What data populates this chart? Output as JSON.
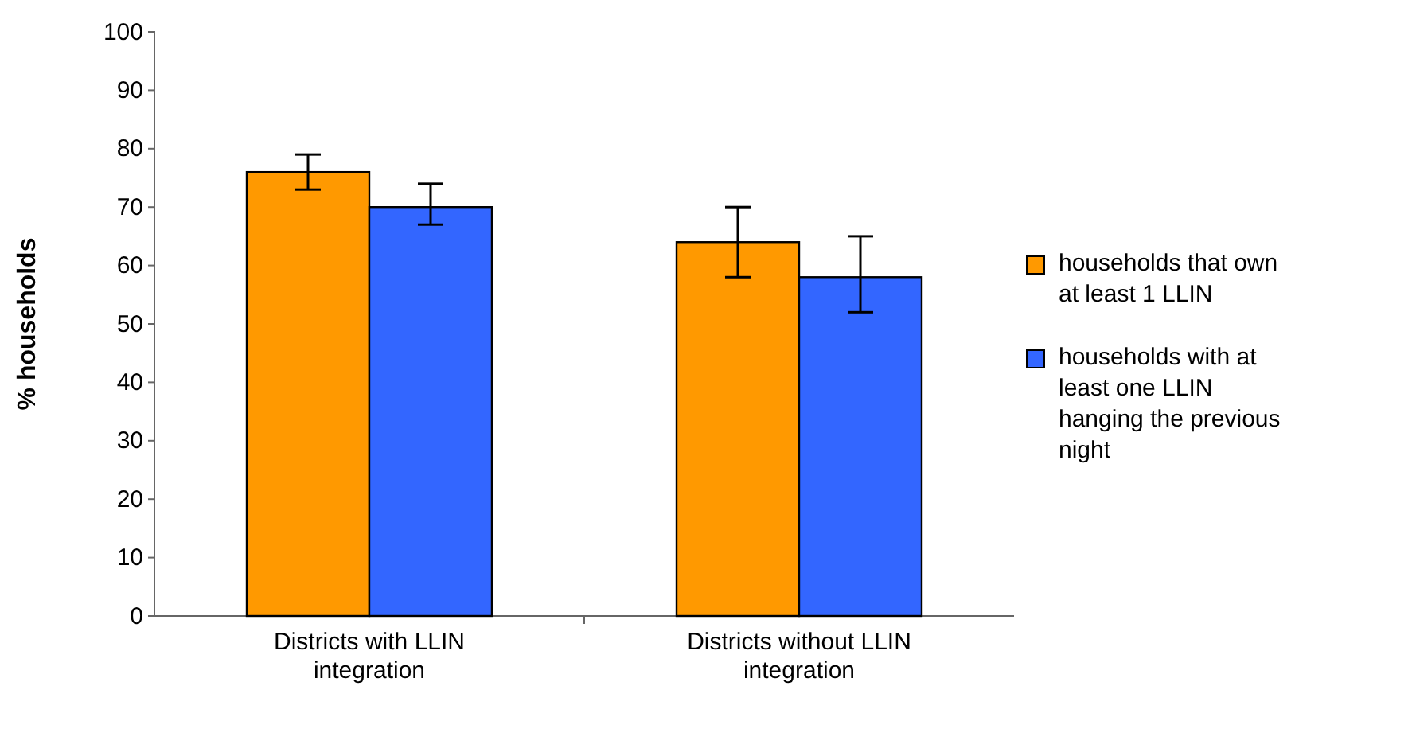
{
  "chart_data": {
    "type": "bar",
    "ylabel": "% households",
    "categories": [
      "Districts with LLIN integration",
      "Districts without LLIN integration"
    ],
    "series": [
      {
        "name": "households that own at least 1 LLIN",
        "color": "#ff9900",
        "values": [
          76,
          64
        ],
        "errors": [
          [
            73,
            79
          ],
          [
            58,
            70
          ]
        ]
      },
      {
        "name": "households with at least one LLIN hanging the previous night",
        "color": "#3366ff",
        "values": [
          70,
          58
        ],
        "errors": [
          [
            67,
            74
          ],
          [
            52,
            65
          ]
        ]
      }
    ],
    "ylim": [
      0,
      100
    ],
    "yticks": [
      0,
      10,
      20,
      30,
      40,
      50,
      60,
      70,
      80,
      90,
      100
    ],
    "grid": false,
    "legend": "right"
  }
}
